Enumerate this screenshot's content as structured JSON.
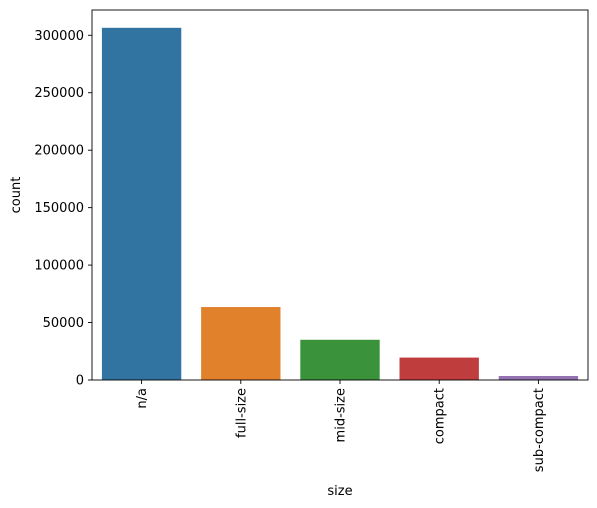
{
  "chart_data": {
    "type": "bar",
    "title": "",
    "xlabel": "size",
    "ylabel": "count",
    "categories": [
      "n/a",
      "full-size",
      "mid-size",
      "compact",
      "sub-compact"
    ],
    "values": [
      306500,
      63500,
      35000,
      19500,
      3500
    ],
    "colors": [
      "#3274a1",
      "#e1812c",
      "#3a923a",
      "#c03d3e",
      "#9372b2"
    ],
    "ylim": [
      0,
      322000
    ],
    "yticks": [
      0,
      50000,
      100000,
      150000,
      200000,
      250000,
      300000
    ],
    "ytick_labels": [
      "0",
      "50000",
      "100000",
      "150000",
      "200000",
      "250000",
      "300000"
    ],
    "grid": false,
    "legend": false
  }
}
